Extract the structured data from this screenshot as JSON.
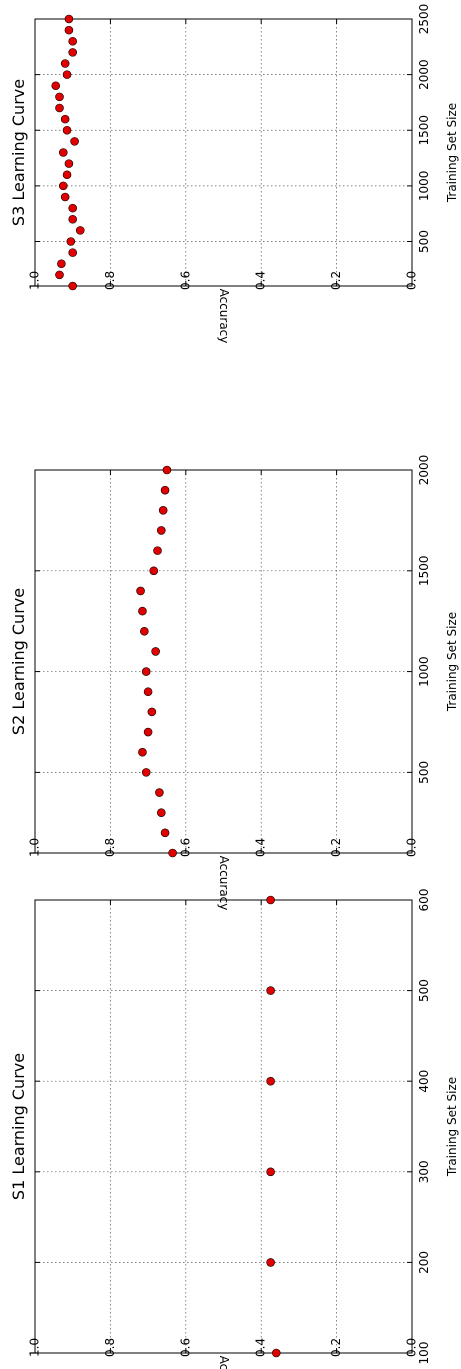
{
  "chart_data": [
    {
      "type": "scatter",
      "title": "S1 Learning Curve",
      "xlabel": "Training Set Size",
      "ylabel": "Accuracy",
      "xlim": [
        100,
        600
      ],
      "ylim": [
        0.0,
        1.0
      ],
      "xticks": [
        100,
        200,
        300,
        400,
        500,
        600
      ],
      "yticks": [
        "0.0",
        "0.2",
        "0.4",
        "0.6",
        "0.8",
        "1.0"
      ],
      "grid": true,
      "marker_color": "#e00000",
      "x": [
        100,
        200,
        300,
        400,
        500,
        600
      ],
      "y": [
        0.36,
        0.375,
        0.375,
        0.375,
        0.375,
        0.375
      ]
    },
    {
      "type": "scatter",
      "title": "S2 Learning Curve",
      "xlabel": "Training Set Size",
      "ylabel": "Accuracy",
      "xlim": [
        100,
        2000
      ],
      "ylim": [
        0.0,
        1.0
      ],
      "xticks": [
        500,
        1000,
        1500,
        2000
      ],
      "yticks": [
        "0.0",
        "0.2",
        "0.4",
        "0.6",
        "0.8",
        "1.0"
      ],
      "grid": true,
      "marker_color": "#e00000",
      "x": [
        100,
        200,
        300,
        400,
        500,
        600,
        700,
        800,
        900,
        1000,
        1100,
        1200,
        1300,
        1400,
        1500,
        1600,
        1700,
        1800,
        1900,
        2000
      ],
      "y": [
        0.635,
        0.655,
        0.665,
        0.67,
        0.705,
        0.715,
        0.7,
        0.69,
        0.7,
        0.705,
        0.68,
        0.71,
        0.715,
        0.72,
        0.685,
        0.675,
        0.665,
        0.66,
        0.655,
        0.65
      ]
    },
    {
      "type": "scatter",
      "title": "S3 Learning Curve",
      "xlabel": "Training Set Size",
      "ylabel": "Accuracy",
      "xlim": [
        100,
        2500
      ],
      "ylim": [
        0.0,
        1.0
      ],
      "xticks": [
        500,
        1000,
        1500,
        2000,
        2500
      ],
      "yticks": [
        "0.0",
        "0.2",
        "0.4",
        "0.6",
        "0.8",
        "1.0"
      ],
      "grid": true,
      "marker_color": "#e00000",
      "x": [
        100,
        200,
        300,
        400,
        500,
        600,
        700,
        800,
        900,
        1000,
        1100,
        1200,
        1300,
        1400,
        1500,
        1600,
        1700,
        1800,
        1900,
        2000,
        2100,
        2200,
        2300,
        2400,
        2500
      ],
      "y": [
        0.9,
        0.935,
        0.93,
        0.9,
        0.905,
        0.88,
        0.9,
        0.9,
        0.92,
        0.925,
        0.915,
        0.91,
        0.925,
        0.895,
        0.915,
        0.92,
        0.935,
        0.935,
        0.945,
        0.915,
        0.92,
        0.9,
        0.9,
        0.91,
        0.91
      ]
    }
  ]
}
